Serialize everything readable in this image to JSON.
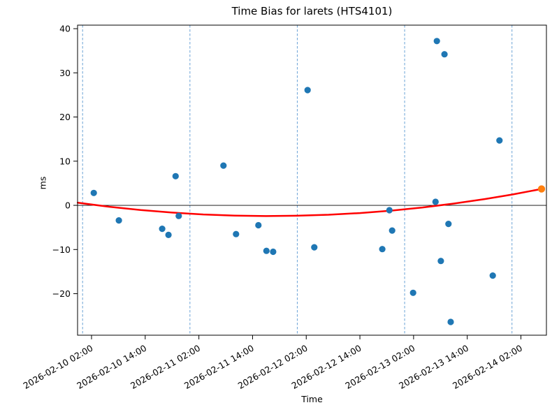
{
  "chart_data": {
    "type": "scatter",
    "title": "Time Bias for larets (HTS4101)",
    "xlabel": "Time",
    "ylabel": "ms",
    "legend": null,
    "grid": false,
    "x_axis": {
      "epoch": "2026-02-10 00:00",
      "range_hours": [
        -1.125,
        103.7
      ],
      "tick_label_rotation_deg": 30,
      "ticks": [
        {
          "hours": 2,
          "label": "2026-02-10 02:00"
        },
        {
          "hours": 14,
          "label": "2026-02-10 14:00"
        },
        {
          "hours": 26,
          "label": "2026-02-11 02:00"
        },
        {
          "hours": 38,
          "label": "2026-02-11 14:00"
        },
        {
          "hours": 50,
          "label": "2026-02-12 02:00"
        },
        {
          "hours": 62,
          "label": "2026-02-12 14:00"
        },
        {
          "hours": 74,
          "label": "2026-02-13 02:00"
        },
        {
          "hours": 86,
          "label": "2026-02-13 14:00"
        },
        {
          "hours": 98,
          "label": "2026-02-14 02:00"
        }
      ],
      "day_lines_hours": [
        0,
        24,
        48,
        72,
        96
      ]
    },
    "y_axis": {
      "range": [
        -29.4,
        40.8
      ],
      "ticks": [
        {
          "value": 40,
          "label": "40"
        },
        {
          "value": 30,
          "label": "30"
        },
        {
          "value": 20,
          "label": "20"
        },
        {
          "value": 10,
          "label": "10"
        },
        {
          "value": 0,
          "label": "0"
        },
        {
          "value": -10,
          "label": "−10"
        },
        {
          "value": -20,
          "label": "−20"
        }
      ],
      "zero_line": true
    },
    "colors": {
      "observations": "#1f77b4",
      "prediction": "#ff7f0e",
      "trend": "#ff0000",
      "day_line": "#6ba3d6",
      "zero_line": "#000000",
      "frame": "#000000"
    },
    "series": [
      {
        "name": "time-bias-observations",
        "marker": "circle",
        "color": "#1f77b4",
        "radius": 4.6,
        "points": [
          {
            "time": "2026-02-10 02:30",
            "hours": 2.5,
            "ms": 2.8
          },
          {
            "time": "2026-02-10 08:06",
            "hours": 8.1,
            "ms": -3.4
          },
          {
            "time": "2026-02-10 17:48",
            "hours": 17.8,
            "ms": -5.3
          },
          {
            "time": "2026-02-10 19:12",
            "hours": 19.2,
            "ms": -6.7
          },
          {
            "time": "2026-02-10 20:48",
            "hours": 20.8,
            "ms": 6.6
          },
          {
            "time": "2026-02-10 21:30",
            "hours": 21.5,
            "ms": -2.4
          },
          {
            "time": "2026-02-11 07:30",
            "hours": 31.5,
            "ms": 9.0
          },
          {
            "time": "2026-02-11 10:18",
            "hours": 34.3,
            "ms": -6.5
          },
          {
            "time": "2026-02-11 15:18",
            "hours": 39.3,
            "ms": -4.5
          },
          {
            "time": "2026-02-11 17:06",
            "hours": 41.1,
            "ms": -10.3
          },
          {
            "time": "2026-02-11 18:36",
            "hours": 42.6,
            "ms": -10.5
          },
          {
            "time": "2026-02-12 02:18",
            "hours": 50.3,
            "ms": 26.1
          },
          {
            "time": "2026-02-12 03:48",
            "hours": 51.8,
            "ms": -9.5
          },
          {
            "time": "2026-02-12 19:00",
            "hours": 67.0,
            "ms": -9.9
          },
          {
            "time": "2026-02-12 20:36",
            "hours": 68.6,
            "ms": -1.1
          },
          {
            "time": "2026-02-12 21:12",
            "hours": 69.2,
            "ms": -5.7
          },
          {
            "time": "2026-02-13 01:54",
            "hours": 73.9,
            "ms": -19.8
          },
          {
            "time": "2026-02-13 06:54",
            "hours": 78.9,
            "ms": 0.8
          },
          {
            "time": "2026-02-13 07:12",
            "hours": 79.2,
            "ms": 37.2
          },
          {
            "time": "2026-02-13 08:06",
            "hours": 80.1,
            "ms": -12.6
          },
          {
            "time": "2026-02-13 08:54",
            "hours": 80.9,
            "ms": 34.2
          },
          {
            "time": "2026-02-13 09:48",
            "hours": 81.8,
            "ms": -4.2
          },
          {
            "time": "2026-02-13 10:18",
            "hours": 82.3,
            "ms": -26.4
          },
          {
            "time": "2026-02-13 19:42",
            "hours": 91.7,
            "ms": -15.9
          },
          {
            "time": "2026-02-13 21:12",
            "hours": 93.2,
            "ms": 14.7
          }
        ]
      },
      {
        "name": "predicted-point",
        "marker": "circle",
        "color": "#ff7f0e",
        "radius": 5.2,
        "points": [
          {
            "time": "2026-02-14 06:36",
            "hours": 102.6,
            "ms": 3.7
          }
        ]
      }
    ],
    "trend_line": {
      "name": "polynomial-fit",
      "color": "#ff0000",
      "width": 2.5,
      "samples": [
        {
          "hours": -1.1,
          "ms": 0.6
        },
        {
          "hours": 6,
          "ms": -0.32
        },
        {
          "hours": 13,
          "ms": -1.06
        },
        {
          "hours": 20,
          "ms": -1.64
        },
        {
          "hours": 27,
          "ms": -2.06
        },
        {
          "hours": 34,
          "ms": -2.32
        },
        {
          "hours": 41,
          "ms": -2.42
        },
        {
          "hours": 48,
          "ms": -2.35
        },
        {
          "hours": 55,
          "ms": -2.13
        },
        {
          "hours": 62,
          "ms": -1.74
        },
        {
          "hours": 69,
          "ms": -1.19
        },
        {
          "hours": 76,
          "ms": -0.48
        },
        {
          "hours": 83,
          "ms": 0.4
        },
        {
          "hours": 90,
          "ms": 1.43
        },
        {
          "hours": 96,
          "ms": 2.45
        },
        {
          "hours": 102.6,
          "ms": 3.7
        }
      ]
    }
  }
}
